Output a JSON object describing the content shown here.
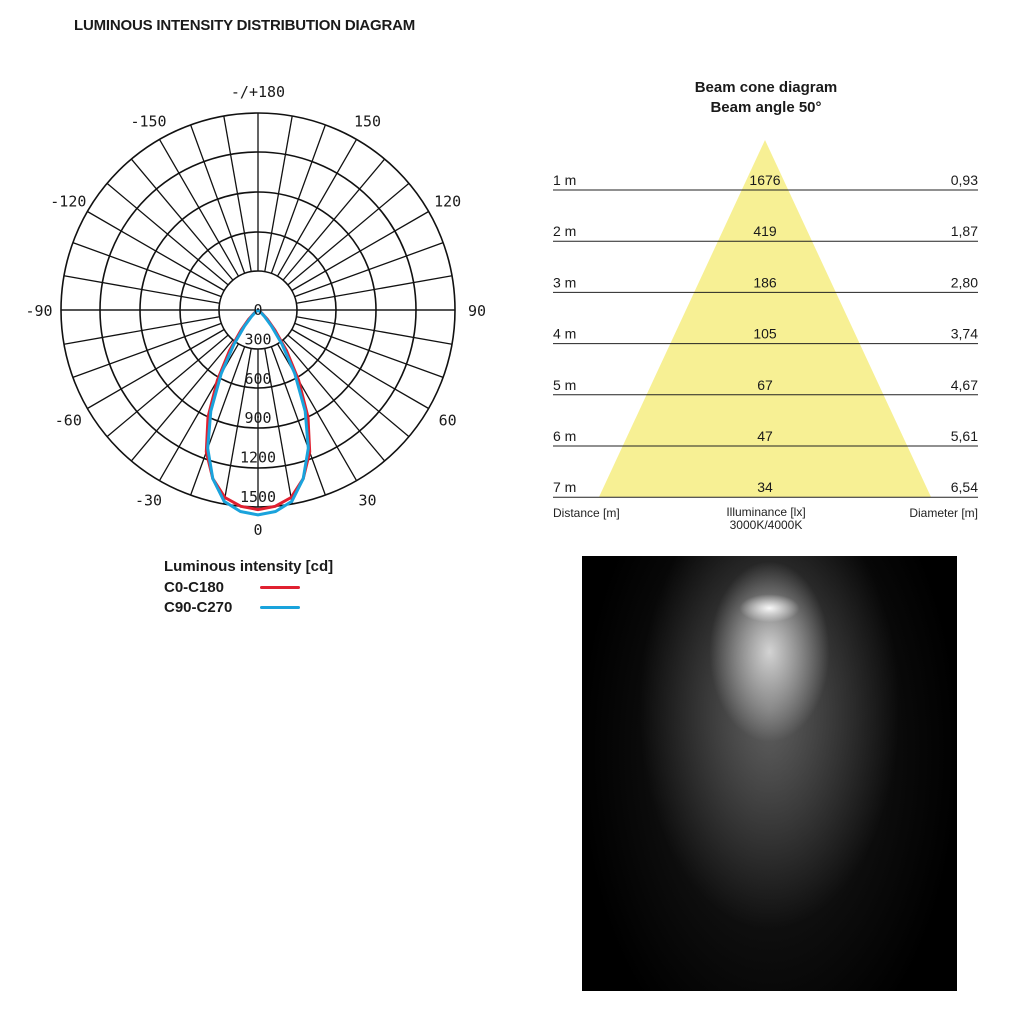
{
  "title": "LUMINOUS INTENSITY DISTRIBUTION DIAGRAM",
  "polar": {
    "angle_labels": [
      "-/+180",
      "150",
      "120",
      "90",
      "60",
      "30",
      "0",
      "-30",
      "-60",
      "-90",
      "-120",
      "-150"
    ],
    "radial_labels": [
      "0",
      "300",
      "600",
      "900",
      "1200",
      "1500"
    ]
  },
  "legend": {
    "title": "Luminous intensity [cd]",
    "items": [
      {
        "label": "C0-C180",
        "color": "#e02030"
      },
      {
        "label": "C90-C270",
        "color": "#1aa3dc"
      }
    ]
  },
  "chart_data": {
    "type": "polar",
    "title": "LUMINOUS INTENSITY DISTRIBUTION DIAGRAM",
    "rlim": [
      0,
      1500
    ],
    "radial_ticks": [
      0,
      300,
      600,
      900,
      1200,
      1500
    ],
    "angle_unit": "degrees",
    "series": [
      {
        "name": "C0-C180",
        "color": "#e02030",
        "angles": [
          0,
          5,
          10,
          15,
          20,
          25,
          30,
          35,
          40,
          45,
          50,
          55,
          60
        ],
        "values": [
          1520,
          1500,
          1450,
          1330,
          1150,
          900,
          620,
          380,
          200,
          100,
          40,
          10,
          0
        ]
      },
      {
        "name": "C90-C270",
        "color": "#1aa3dc",
        "angles": [
          0,
          5,
          10,
          15,
          20,
          25,
          30,
          35,
          40,
          45,
          50,
          55,
          60
        ],
        "values": [
          1560,
          1540,
          1480,
          1330,
          1120,
          850,
          560,
          320,
          160,
          70,
          25,
          5,
          0
        ]
      }
    ]
  },
  "cone": {
    "title_line1": "Beam cone diagram",
    "title_line2": "Beam angle 50°",
    "rows": [
      {
        "distance": "1 m",
        "illuminance": "1676",
        "diameter": "0,93"
      },
      {
        "distance": "2 m",
        "illuminance": "419",
        "diameter": "1,87"
      },
      {
        "distance": "3 m",
        "illuminance": "186",
        "diameter": "2,80"
      },
      {
        "distance": "4 m",
        "illuminance": "105",
        "diameter": "3,74"
      },
      {
        "distance": "5 m",
        "illuminance": "67",
        "diameter": "4,67"
      },
      {
        "distance": "6 m",
        "illuminance": "47",
        "diameter": "5,61"
      },
      {
        "distance": "7 m",
        "illuminance": "34",
        "diameter": "6,54"
      }
    ],
    "footer_left": "Distance [m]",
    "footer_center": "Illuminance [lx]",
    "footer_center_sub": "3000K/4000K",
    "footer_right": "Diameter [m]",
    "cone_color": "#f7f094"
  }
}
